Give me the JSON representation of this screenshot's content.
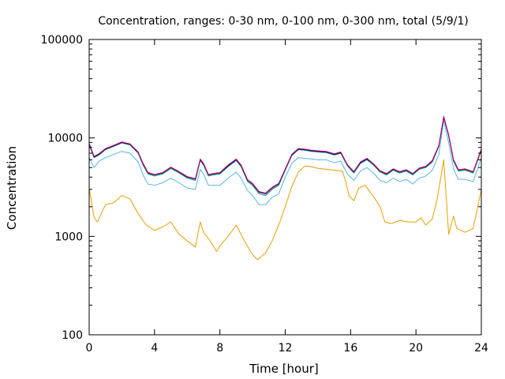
{
  "chart_data": {
    "type": "line",
    "title": "Concentration, ranges: 0-30 nm, 0-100 nm, 0-300 nm, total (5/9/1)",
    "xlabel": "Time [hour]",
    "ylabel": "Concentration",
    "xlim": [
      0,
      24
    ],
    "ylim": [
      100,
      100000
    ],
    "yscale": "log",
    "x_ticks": [
      0,
      4,
      8,
      12,
      16,
      20,
      24
    ],
    "x_tick_labels": [
      "0",
      "4",
      "8",
      "12",
      "16",
      "20",
      "24"
    ],
    "y_ticks": [
      100,
      1000,
      10000,
      100000
    ],
    "y_tick_labels": [
      "100",
      "1000",
      "10000",
      "100000"
    ],
    "grid": false,
    "legend": "none",
    "series": [
      {
        "color": "#e69f00",
        "points": [
          [
            0,
            3100
          ],
          [
            0.3,
            1550
          ],
          [
            0.5,
            1400
          ],
          [
            1.0,
            2100
          ],
          [
            1.5,
            2200
          ],
          [
            2.0,
            2600
          ],
          [
            2.5,
            2400
          ],
          [
            3.0,
            1700
          ],
          [
            3.5,
            1300
          ],
          [
            4.0,
            1150
          ],
          [
            4.5,
            1250
          ],
          [
            5.0,
            1400
          ],
          [
            5.5,
            1050
          ],
          [
            6.0,
            900
          ],
          [
            6.5,
            780
          ],
          [
            6.8,
            1400
          ],
          [
            7.0,
            1100
          ],
          [
            7.3,
            950
          ],
          [
            7.6,
            800
          ],
          [
            7.8,
            700
          ],
          [
            8.0,
            800
          ],
          [
            8.5,
            1000
          ],
          [
            9.0,
            1300
          ],
          [
            9.5,
            900
          ],
          [
            10.0,
            650
          ],
          [
            10.3,
            580
          ],
          [
            10.8,
            680
          ],
          [
            11.2,
            900
          ],
          [
            11.6,
            1300
          ],
          [
            12.0,
            2000
          ],
          [
            12.4,
            3200
          ],
          [
            12.8,
            4500
          ],
          [
            13.2,
            5200
          ],
          [
            13.6,
            5100
          ],
          [
            14.0,
            4900
          ],
          [
            14.5,
            4800
          ],
          [
            15.0,
            4700
          ],
          [
            15.5,
            4600
          ],
          [
            15.7,
            3600
          ],
          [
            15.9,
            2600
          ],
          [
            16.2,
            2300
          ],
          [
            16.5,
            3100
          ],
          [
            16.9,
            3300
          ],
          [
            17.2,
            2800
          ],
          [
            17.5,
            2400
          ],
          [
            17.8,
            2000
          ],
          [
            18.1,
            1400
          ],
          [
            18.5,
            1350
          ],
          [
            19.0,
            1450
          ],
          [
            19.5,
            1400
          ],
          [
            20.0,
            1400
          ],
          [
            20.3,
            1550
          ],
          [
            20.6,
            1300
          ],
          [
            21.0,
            1500
          ],
          [
            21.3,
            2400
          ],
          [
            21.7,
            6000
          ],
          [
            22.0,
            1050
          ],
          [
            22.3,
            1600
          ],
          [
            22.5,
            1200
          ],
          [
            23.0,
            1100
          ],
          [
            23.5,
            1200
          ],
          [
            24.0,
            3000
          ]
        ]
      },
      {
        "color": "#56b4e9",
        "points": [
          [
            0,
            6300
          ],
          [
            0.3,
            5000
          ],
          [
            0.6,
            5800
          ],
          [
            1.0,
            6300
          ],
          [
            1.5,
            6800
          ],
          [
            2.0,
            7300
          ],
          [
            2.5,
            7000
          ],
          [
            3.0,
            5700
          ],
          [
            3.3,
            4200
          ],
          [
            3.6,
            3400
          ],
          [
            4.0,
            3300
          ],
          [
            4.5,
            3500
          ],
          [
            5.0,
            3900
          ],
          [
            5.5,
            3500
          ],
          [
            6.0,
            3100
          ],
          [
            6.5,
            3000
          ],
          [
            6.8,
            4800
          ],
          [
            7.0,
            4300
          ],
          [
            7.3,
            3300
          ],
          [
            7.6,
            3300
          ],
          [
            8.0,
            3300
          ],
          [
            8.5,
            3900
          ],
          [
            9.0,
            4500
          ],
          [
            9.3,
            3900
          ],
          [
            9.7,
            2900
          ],
          [
            10.0,
            2600
          ],
          [
            10.4,
            2100
          ],
          [
            10.8,
            2100
          ],
          [
            11.2,
            2500
          ],
          [
            11.6,
            2700
          ],
          [
            12.0,
            4000
          ],
          [
            12.4,
            5500
          ],
          [
            12.8,
            6300
          ],
          [
            13.2,
            6200
          ],
          [
            13.6,
            6100
          ],
          [
            14.0,
            6000
          ],
          [
            14.5,
            6000
          ],
          [
            15.0,
            5600
          ],
          [
            15.4,
            5800
          ],
          [
            15.8,
            4300
          ],
          [
            16.2,
            3700
          ],
          [
            16.6,
            4600
          ],
          [
            17.0,
            5000
          ],
          [
            17.4,
            4400
          ],
          [
            17.8,
            3700
          ],
          [
            18.2,
            3500
          ],
          [
            18.6,
            3900
          ],
          [
            19.0,
            3600
          ],
          [
            19.4,
            3800
          ],
          [
            19.8,
            3400
          ],
          [
            20.2,
            3900
          ],
          [
            20.6,
            4100
          ],
          [
            21.0,
            4700
          ],
          [
            21.4,
            6800
          ],
          [
            21.7,
            15000
          ],
          [
            22.0,
            9000
          ],
          [
            22.3,
            4800
          ],
          [
            22.6,
            3800
          ],
          [
            23.0,
            3800
          ],
          [
            23.5,
            3600
          ],
          [
            24.0,
            6300
          ]
        ]
      },
      {
        "color": "#009e73",
        "points": [
          [
            0,
            8500
          ],
          [
            0.3,
            6300
          ],
          [
            0.6,
            6700
          ],
          [
            1.0,
            7600
          ],
          [
            1.5,
            8200
          ],
          [
            2.0,
            8900
          ],
          [
            2.5,
            8500
          ],
          [
            3.0,
            7000
          ],
          [
            3.3,
            5300
          ],
          [
            3.6,
            4300
          ],
          [
            4.0,
            4100
          ],
          [
            4.5,
            4300
          ],
          [
            5.0,
            4900
          ],
          [
            5.5,
            4400
          ],
          [
            6.0,
            3900
          ],
          [
            6.5,
            3700
          ],
          [
            6.8,
            5900
          ],
          [
            7.0,
            5300
          ],
          [
            7.3,
            4100
          ],
          [
            7.6,
            4200
          ],
          [
            8.0,
            4300
          ],
          [
            8.5,
            5100
          ],
          [
            9.0,
            5900
          ],
          [
            9.3,
            5100
          ],
          [
            9.7,
            3600
          ],
          [
            10.0,
            3300
          ],
          [
            10.4,
            2700
          ],
          [
            10.8,
            2600
          ],
          [
            11.2,
            3000
          ],
          [
            11.6,
            3300
          ],
          [
            12.0,
            4700
          ],
          [
            12.4,
            6600
          ],
          [
            12.8,
            7600
          ],
          [
            13.2,
            7500
          ],
          [
            13.6,
            7300
          ],
          [
            14.0,
            7200
          ],
          [
            14.5,
            7100
          ],
          [
            15.0,
            6700
          ],
          [
            15.4,
            7000
          ],
          [
            15.8,
            5200
          ],
          [
            16.2,
            4400
          ],
          [
            16.6,
            5500
          ],
          [
            17.0,
            6000
          ],
          [
            17.4,
            5300
          ],
          [
            17.8,
            4500
          ],
          [
            18.2,
            4200
          ],
          [
            18.6,
            4700
          ],
          [
            19.0,
            4400
          ],
          [
            19.4,
            4600
          ],
          [
            19.8,
            4200
          ],
          [
            20.2,
            4800
          ],
          [
            20.6,
            5000
          ],
          [
            21.0,
            5700
          ],
          [
            21.4,
            8200
          ],
          [
            21.7,
            16000
          ],
          [
            22.0,
            10500
          ],
          [
            22.3,
            5800
          ],
          [
            22.6,
            4600
          ],
          [
            23.0,
            4700
          ],
          [
            23.5,
            4400
          ],
          [
            24.0,
            7500
          ]
        ]
      },
      {
        "color": "#000080",
        "points": [
          [
            0,
            8700
          ],
          [
            0.3,
            6400
          ],
          [
            0.6,
            6800
          ],
          [
            1.0,
            7700
          ],
          [
            1.5,
            8300
          ],
          [
            2.0,
            9000
          ],
          [
            2.5,
            8600
          ],
          [
            3.0,
            7100
          ],
          [
            3.3,
            5400
          ],
          [
            3.6,
            4400
          ],
          [
            4.0,
            4200
          ],
          [
            4.5,
            4400
          ],
          [
            5.0,
            5000
          ],
          [
            5.5,
            4500
          ],
          [
            6.0,
            4000
          ],
          [
            6.5,
            3800
          ],
          [
            6.8,
            6000
          ],
          [
            7.0,
            5400
          ],
          [
            7.3,
            4200
          ],
          [
            7.6,
            4300
          ],
          [
            8.0,
            4400
          ],
          [
            8.5,
            5200
          ],
          [
            9.0,
            6000
          ],
          [
            9.3,
            5200
          ],
          [
            9.7,
            3700
          ],
          [
            10.0,
            3400
          ],
          [
            10.4,
            2800
          ],
          [
            10.8,
            2700
          ],
          [
            11.2,
            3100
          ],
          [
            11.6,
            3400
          ],
          [
            12.0,
            4800
          ],
          [
            12.4,
            6700
          ],
          [
            12.8,
            7700
          ],
          [
            13.2,
            7600
          ],
          [
            13.6,
            7400
          ],
          [
            14.0,
            7300
          ],
          [
            14.5,
            7200
          ],
          [
            15.0,
            6800
          ],
          [
            15.4,
            7100
          ],
          [
            15.8,
            5300
          ],
          [
            16.2,
            4500
          ],
          [
            16.6,
            5600
          ],
          [
            17.0,
            6100
          ],
          [
            17.4,
            5400
          ],
          [
            17.8,
            4600
          ],
          [
            18.2,
            4300
          ],
          [
            18.6,
            4800
          ],
          [
            19.0,
            4500
          ],
          [
            19.4,
            4700
          ],
          [
            19.8,
            4300
          ],
          [
            20.2,
            4900
          ],
          [
            20.6,
            5100
          ],
          [
            21.0,
            5800
          ],
          [
            21.4,
            8300
          ],
          [
            21.7,
            16300
          ],
          [
            22.0,
            10700
          ],
          [
            22.3,
            5900
          ],
          [
            22.6,
            4700
          ],
          [
            23.0,
            4800
          ],
          [
            23.5,
            4500
          ],
          [
            24.0,
            7600
          ]
        ]
      },
      {
        "color": "#cc0066",
        "points": [
          [
            0,
            8800
          ],
          [
            0.3,
            6500
          ],
          [
            0.6,
            6900
          ],
          [
            1.0,
            7800
          ],
          [
            1.5,
            8400
          ],
          [
            2.0,
            9100
          ],
          [
            2.5,
            8700
          ],
          [
            3.0,
            7200
          ],
          [
            3.3,
            5500
          ],
          [
            3.6,
            4450
          ],
          [
            4.0,
            4250
          ],
          [
            4.5,
            4450
          ],
          [
            5.0,
            5050
          ],
          [
            5.5,
            4550
          ],
          [
            6.0,
            4050
          ],
          [
            6.5,
            3850
          ],
          [
            6.8,
            6100
          ],
          [
            7.0,
            5500
          ],
          [
            7.3,
            4250
          ],
          [
            7.6,
            4350
          ],
          [
            8.0,
            4450
          ],
          [
            8.5,
            5300
          ],
          [
            9.0,
            6100
          ],
          [
            9.3,
            5300
          ],
          [
            9.7,
            3750
          ],
          [
            10.0,
            3450
          ],
          [
            10.4,
            2850
          ],
          [
            10.8,
            2750
          ],
          [
            11.2,
            3150
          ],
          [
            11.6,
            3450
          ],
          [
            12.0,
            4850
          ],
          [
            12.4,
            6800
          ],
          [
            12.8,
            7800
          ],
          [
            13.2,
            7700
          ],
          [
            13.6,
            7500
          ],
          [
            14.0,
            7400
          ],
          [
            14.5,
            7300
          ],
          [
            15.0,
            6900
          ],
          [
            15.4,
            7200
          ],
          [
            15.8,
            5350
          ],
          [
            16.2,
            4550
          ],
          [
            16.6,
            5700
          ],
          [
            17.0,
            6200
          ],
          [
            17.4,
            5450
          ],
          [
            17.8,
            4650
          ],
          [
            18.2,
            4350
          ],
          [
            18.6,
            4850
          ],
          [
            19.0,
            4550
          ],
          [
            19.4,
            4750
          ],
          [
            19.8,
            4350
          ],
          [
            20.2,
            4950
          ],
          [
            20.6,
            5150
          ],
          [
            21.0,
            5900
          ],
          [
            21.4,
            8400
          ],
          [
            21.7,
            16500
          ],
          [
            22.0,
            10800
          ],
          [
            22.3,
            6000
          ],
          [
            22.6,
            4750
          ],
          [
            23.0,
            4850
          ],
          [
            23.5,
            4550
          ],
          [
            24.0,
            7700
          ]
        ]
      }
    ]
  }
}
